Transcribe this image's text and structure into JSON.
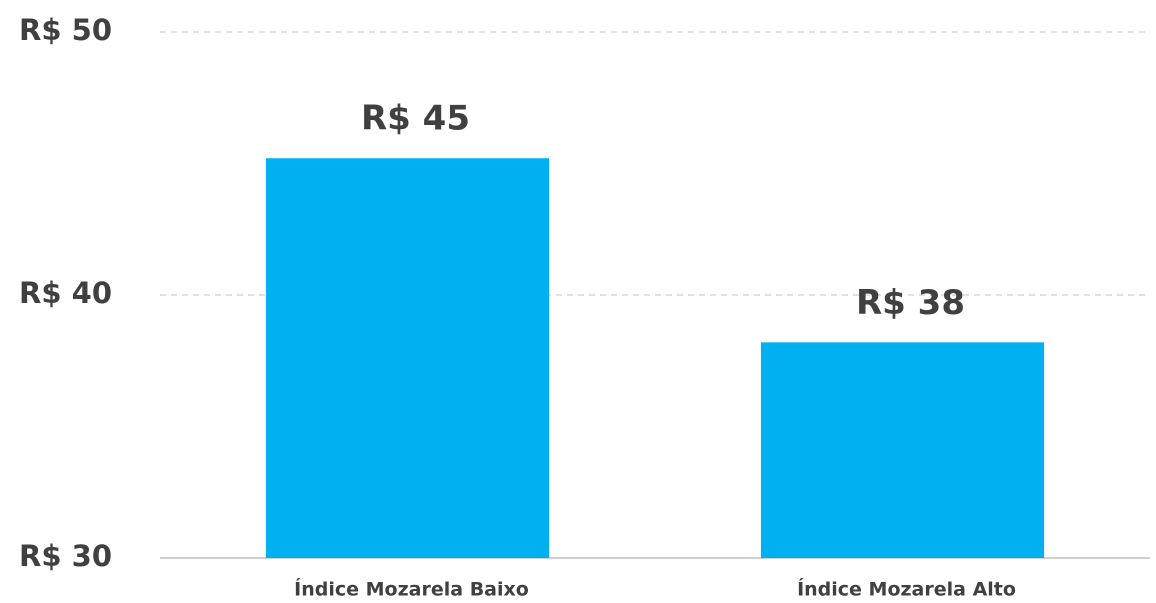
{
  "chart_data": {
    "type": "bar",
    "categories": [
      "Índice Mozarela Baixo",
      "Índice Mozarela Alto"
    ],
    "values": [
      45.2,
      38.2
    ],
    "value_labels": [
      "R$ 45",
      "R$ 38"
    ],
    "color": "#00b0f0",
    "ylim": [
      30,
      50
    ],
    "yticks": [
      {
        "value": 30,
        "label": "R$ 30"
      },
      {
        "value": 40,
        "label": "R$ 40"
      },
      {
        "value": 50,
        "label": "R$ 50"
      }
    ],
    "grid": true
  }
}
